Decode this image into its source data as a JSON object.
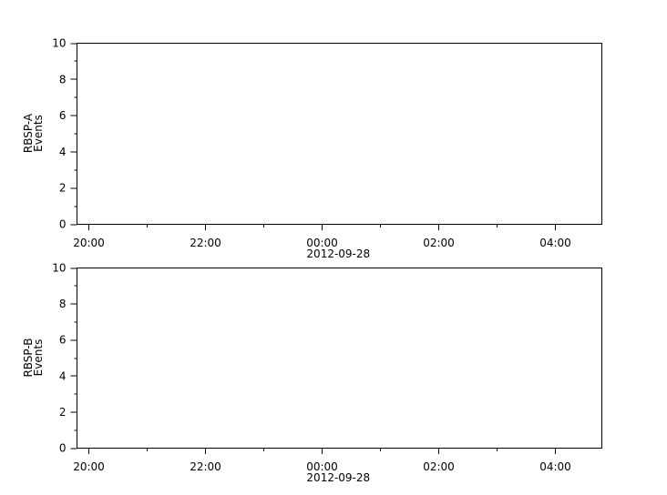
{
  "chart_data": [
    {
      "type": "line",
      "ylabel": [
        "RBSP-A",
        "Events"
      ],
      "ylim": [
        0,
        10
      ],
      "yticks": [
        0,
        2,
        4,
        6,
        8,
        10
      ],
      "xlim": [
        "2012-09-27T19:48",
        "2012-09-28T04:48"
      ],
      "xticks": [
        "20:00",
        "22:00",
        "00:00",
        "02:00",
        "04:00"
      ],
      "xtick_times": [
        "2012-09-27T20:00",
        "2012-09-27T22:00",
        "2012-09-28T00:00",
        "2012-09-28T02:00",
        "2012-09-28T04:00"
      ],
      "xlabel": "2012-09-28",
      "series": [],
      "grid": false
    },
    {
      "type": "line",
      "ylabel": [
        "RBSP-B",
        "Events"
      ],
      "ylim": [
        0,
        10
      ],
      "yticks": [
        0,
        2,
        4,
        6,
        8,
        10
      ],
      "xlim": [
        "2012-09-27T19:48",
        "2012-09-28T04:48"
      ],
      "xticks": [
        "20:00",
        "22:00",
        "00:00",
        "02:00",
        "04:00"
      ],
      "xtick_times": [
        "2012-09-27T20:00",
        "2012-09-27T22:00",
        "2012-09-28T00:00",
        "2012-09-28T02:00",
        "2012-09-28T04:00"
      ],
      "xlabel": "2012-09-28",
      "series": [],
      "grid": false
    }
  ]
}
